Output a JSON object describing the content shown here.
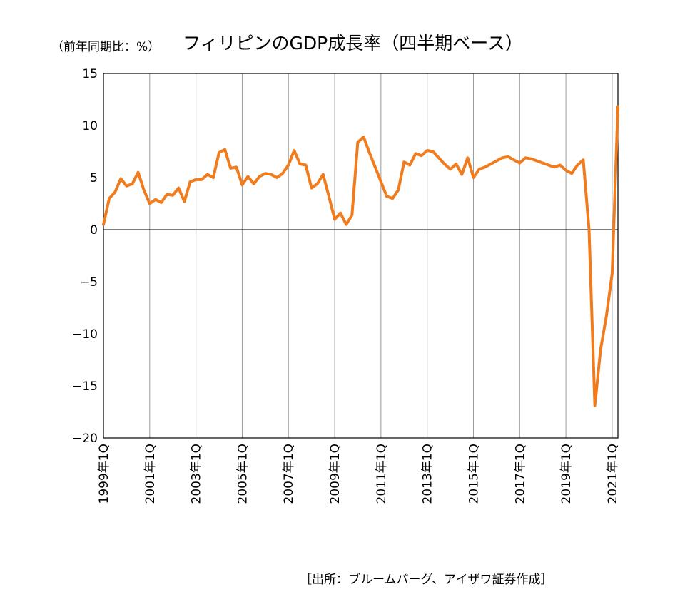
{
  "chart_data": {
    "type": "line",
    "title": "フィリピンのGDP成長率（四半期ベース）",
    "unit_label": "（前年同期比：%）",
    "source": "［出所：ブルームバーグ、アイザワ証券作成］",
    "xlabel": "",
    "ylabel": "",
    "ylim": [
      -20,
      15
    ],
    "yticks": [
      15,
      10,
      5,
      0,
      -5,
      -10,
      -15,
      -20
    ],
    "grid": {
      "vertical": true,
      "horizontal": false,
      "zero_line": true
    },
    "legend": "none",
    "line_color": "#f07c1e",
    "x_tick_labels": [
      "1999年1Q",
      "2001年1Q",
      "2003年1Q",
      "2005年1Q",
      "2007年1Q",
      "2009年1Q",
      "2011年1Q",
      "2013年1Q",
      "2015年1Q",
      "2017年1Q",
      "2019年1Q",
      "2021年1Q"
    ],
    "x_start": "1999年1Q",
    "x_end": "2021年2Q",
    "series": [
      {
        "name": "",
        "values": [
          0.5,
          3.0,
          3.6,
          4.9,
          4.2,
          4.4,
          5.5,
          3.8,
          2.5,
          2.9,
          2.6,
          3.4,
          3.3,
          4.0,
          2.7,
          4.6,
          4.8,
          4.8,
          5.3,
          5.0,
          7.4,
          7.7,
          5.9,
          6.0,
          4.3,
          5.1,
          4.4,
          5.1,
          5.4,
          5.3,
          5.0,
          5.4,
          6.2,
          7.6,
          6.3,
          6.2,
          4.0,
          4.4,
          5.3,
          3.2,
          1.0,
          1.6,
          0.5,
          1.4,
          8.4,
          8.9,
          7.4,
          6.0,
          4.6,
          3.2,
          3.0,
          3.8,
          6.5,
          6.2,
          7.3,
          7.1,
          7.6,
          7.5,
          6.9,
          6.3,
          5.8,
          6.3,
          5.3,
          6.9,
          5.0,
          5.8,
          6.0,
          6.3,
          6.6,
          6.9,
          7.0,
          6.7,
          6.4,
          6.9,
          6.8,
          6.6,
          6.4,
          6.2,
          6.0,
          6.2,
          5.7,
          5.4,
          6.2,
          6.7,
          0.0,
          -16.9,
          -11.5,
          -8.3,
          -4.2,
          11.8
        ]
      }
    ]
  }
}
